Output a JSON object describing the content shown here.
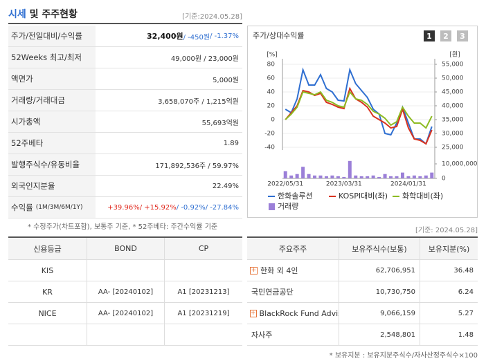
{
  "header": {
    "title_main": "시세",
    "title_rest": " 및 주주현황",
    "date": "[기준:2024.05.28]"
  },
  "info": {
    "rows": [
      {
        "label": "주가/전일대비/수익률",
        "parts": [
          {
            "text": "32,400원",
            "color": "#111111",
            "bold": true
          },
          {
            "text": " / -450원",
            "color": "#2f6fd1"
          },
          {
            "text": " / -1.37%",
            "color": "#2f6fd1"
          }
        ]
      },
      {
        "label": "52Weeks 최고/최저",
        "parts": [
          {
            "text": "49,000원 / 23,000원",
            "color": "#333333"
          }
        ]
      },
      {
        "label": "액면가",
        "parts": [
          {
            "text": "5,000원",
            "color": "#333333"
          }
        ]
      },
      {
        "label": "거래량/거래대금",
        "parts": [
          {
            "text": "3,658,070주 / 1,215억원",
            "color": "#333333"
          }
        ]
      },
      {
        "label": "시가총액",
        "parts": [
          {
            "text": "55,693억원",
            "color": "#333333"
          }
        ]
      },
      {
        "label": "52주베타",
        "parts": [
          {
            "text": "1.89",
            "color": "#333333"
          }
        ]
      },
      {
        "label": "발행주식수/유동비율",
        "parts": [
          {
            "text": "171,892,536주 / 59.97%",
            "color": "#333333"
          }
        ]
      },
      {
        "label": "외국인지분율",
        "parts": [
          {
            "text": "22.49%",
            "color": "#333333"
          }
        ]
      },
      {
        "label": "수익률",
        "sublabel": "(1M/3M/6M/1Y)",
        "parts": [
          {
            "text": "+39.96%",
            "color": "#e0261b"
          },
          {
            "text": " / +15.92%",
            "color": "#e0261b"
          },
          {
            "text": " / -0.92%",
            "color": "#2f6fd1"
          },
          {
            "text": " / -27.84%",
            "color": "#2f6fd1"
          }
        ]
      }
    ],
    "note": "* 수정주가(차트포함), 보통주 기준, * 52주베타: 주간수익률 기준"
  },
  "chart_data": {
    "type": "line",
    "title": "주가/상대수익률",
    "buttons": [
      "1",
      "2",
      "3"
    ],
    "y_unit": "[%]",
    "y2_unit": "[원]",
    "categories": [
      "2022/05/31",
      null,
      null,
      null,
      null,
      null,
      null,
      null,
      null,
      null,
      "2023/03/31",
      null,
      null,
      null,
      null,
      null,
      null,
      null,
      null,
      null,
      null,
      "2024/01/31",
      null,
      null,
      null,
      null
    ],
    "ylim": [
      -40,
      80
    ],
    "yticks": [
      -40,
      -20,
      0,
      20,
      40,
      60,
      80
    ],
    "y2lim": [
      25000,
      55000
    ],
    "y2ticks": [
      {
        "value": 25000,
        "label": "25,000"
      },
      {
        "value": 30000,
        "label": "30,000"
      },
      {
        "value": 35000,
        "label": "35,000"
      },
      {
        "value": 40000,
        "label": "40,000"
      },
      {
        "value": 45000,
        "label": "45,000"
      },
      {
        "value": 50000,
        "label": "50,000"
      },
      {
        "value": 55000,
        "label": "55,000"
      }
    ],
    "series": [
      {
        "name": "한화솔루션",
        "color": "#2f6fd1",
        "axis": "y2",
        "values": [
          38750,
          37500,
          42500,
          53000,
          47500,
          47500,
          51250,
          46250,
          45000,
          42000,
          41750,
          53000,
          48000,
          45500,
          43000,
          38750,
          37000,
          30000,
          29500,
          33750,
          39500,
          33750,
          28000,
          28000,
          26250,
          32500
        ]
      },
      {
        "name": "KOSPI대비(좌)",
        "color": "#d9331f",
        "values": [
          0,
          10,
          20,
          42,
          40,
          35,
          38,
          25,
          22,
          18,
          16,
          45,
          30,
          25,
          18,
          5,
          0,
          -5,
          -12,
          -10,
          15,
          -12,
          -28,
          -30,
          -35,
          -15
        ]
      },
      {
        "name": "화학대비(좌)",
        "color": "#8dbb22",
        "values": [
          0,
          8,
          18,
          40,
          38,
          36,
          40,
          28,
          25,
          20,
          18,
          40,
          30,
          28,
          22,
          12,
          8,
          2,
          -8,
          -3,
          18,
          5,
          -5,
          -5,
          -12,
          5
        ]
      }
    ],
    "volume": {
      "name": "거래량",
      "color": "#9b7fd8",
      "ylim": [
        0,
        10000000
      ],
      "yticks": [
        0,
        {
          "value": 10000000,
          "label": "10,000,000"
        }
      ],
      "values": [
        5000000,
        2000000,
        3000000,
        8000000,
        3000000,
        2000000,
        2000000,
        1500000,
        2000000,
        1500000,
        1000000,
        12000000,
        2000000,
        1500000,
        1500000,
        2000000,
        1000000,
        3000000,
        1500000,
        1500000,
        4000000,
        1500000,
        2000000,
        1500000,
        2000000,
        4000000
      ]
    }
  },
  "date2": "[기준: 2024.05.28]",
  "credit": {
    "headers": [
      "신용등급",
      "BOND",
      "CP"
    ],
    "rows": [
      [
        "KIS",
        "",
        ""
      ],
      [
        "KR",
        "AA-  [20240102]",
        "A1  [20231213]"
      ],
      [
        "NICE",
        "AA-  [20240102]",
        "A1  [20231219]"
      ],
      [
        "",
        "",
        ""
      ]
    ]
  },
  "holders": {
    "headers": [
      "주요주주",
      "보유주식수(보통)",
      "보유지분(%)"
    ],
    "expandable": [
      true,
      false,
      true,
      false
    ],
    "rows": [
      [
        "한화 외 4인",
        "62,706,951",
        "36.48"
      ],
      [
        "국민연금공단",
        "10,730,750",
        "6.24"
      ],
      [
        "BlackRock Fund Advis…",
        "9,066,159",
        "5.27"
      ],
      [
        "자사주",
        "2,548,801",
        "1.48"
      ]
    ],
    "note": "* 보유지분 : 보유지분주식수/자사산정주식수×100"
  }
}
